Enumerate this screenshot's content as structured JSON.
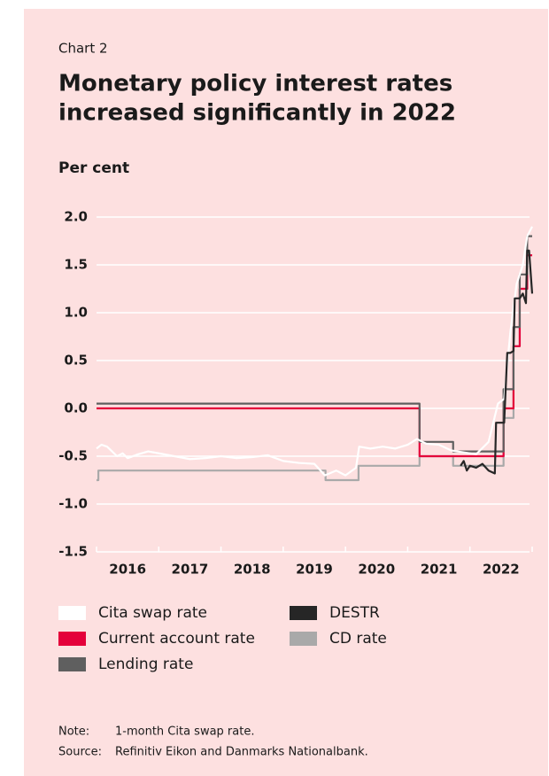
{
  "chart_data": {
    "type": "line",
    "label": "Chart 2",
    "title": [
      "Monetary policy interest rates",
      "increased significantly in 2022"
    ],
    "y_label": "Per cent",
    "xlim": [
      2016,
      2023
    ],
    "xticks": [
      {
        "value": 2016,
        "label": "2016"
      },
      {
        "value": 2017,
        "label": "2017"
      },
      {
        "value": 2018,
        "label": "2018"
      },
      {
        "value": 2019,
        "label": "2019"
      },
      {
        "value": 2020,
        "label": "2020"
      },
      {
        "value": 2021,
        "label": "2021"
      },
      {
        "value": 2022,
        "label": "2022"
      }
    ],
    "ylim": [
      -1.5,
      2.0
    ],
    "yticks": [
      {
        "value": -1.5,
        "label": "-1.5"
      },
      {
        "value": -1.0,
        "label": "-1.0"
      },
      {
        "value": -0.5,
        "label": "-0.5"
      },
      {
        "value": 0,
        "label": "0.0"
      },
      {
        "value": 0.5,
        "label": "0.5"
      },
      {
        "value": 1.0,
        "label": "1.0"
      },
      {
        "value": 1.5,
        "label": "1.5"
      },
      {
        "value": 2.0,
        "label": "2.0"
      }
    ],
    "grid": true,
    "series": [
      {
        "name": "Cita swap rate",
        "color": "#ffffff",
        "step": false,
        "x": [
          2016.0,
          2016.08,
          2016.17,
          2016.25,
          2016.33,
          2016.42,
          2016.5,
          2016.67,
          2016.83,
          2017.0,
          2017.25,
          2017.5,
          2017.75,
          2018.0,
          2018.25,
          2018.5,
          2018.75,
          2019.0,
          2019.25,
          2019.5,
          2019.67,
          2019.85,
          2020.0,
          2020.17,
          2020.22,
          2020.4,
          2020.6,
          2020.8,
          2021.0,
          2021.15,
          2021.3,
          2021.5,
          2021.7,
          2021.9,
          2022.1,
          2022.3,
          2022.45,
          2022.55,
          2022.65,
          2022.75,
          2022.85,
          2022.92,
          2023.0
        ],
        "values": [
          -0.42,
          -0.38,
          -0.4,
          -0.45,
          -0.5,
          -0.47,
          -0.52,
          -0.48,
          -0.45,
          -0.47,
          -0.5,
          -0.53,
          -0.52,
          -0.5,
          -0.52,
          -0.51,
          -0.49,
          -0.55,
          -0.57,
          -0.58,
          -0.7,
          -0.65,
          -0.7,
          -0.62,
          -0.4,
          -0.42,
          -0.4,
          -0.42,
          -0.38,
          -0.32,
          -0.37,
          -0.38,
          -0.44,
          -0.46,
          -0.48,
          -0.35,
          0.05,
          0.1,
          0.8,
          1.3,
          1.5,
          1.8,
          1.9
        ]
      },
      {
        "name": "Current account rate",
        "color": "#e4003a",
        "step": true,
        "x": [
          2016,
          2021.19,
          2022.54,
          2022.7,
          2022.8,
          2022.92,
          2023
        ],
        "values": [
          0,
          -0.5,
          0,
          0.65,
          1.25,
          1.6,
          1.6
        ]
      },
      {
        "name": "Lending rate",
        "color": "#5f5f5f",
        "step": true,
        "x": [
          2016,
          2021.19,
          2021.73,
          2022.54,
          2022.7,
          2022.8,
          2022.92,
          2023
        ],
        "values": [
          0.05,
          -0.35,
          -0.45,
          0.2,
          0.85,
          1.4,
          1.8,
          1.8
        ]
      },
      {
        "name": "DESTR",
        "color": "#262626",
        "step": false,
        "x": [
          2021.85,
          2021.9,
          2021.95,
          2022.0,
          2022.1,
          2022.2,
          2022.3,
          2022.4,
          2022.42,
          2022.5,
          2022.55,
          2022.6,
          2022.65,
          2022.7,
          2022.72,
          2022.8,
          2022.85,
          2022.9,
          2022.92,
          2022.95,
          2023.0
        ],
        "values": [
          -0.6,
          -0.55,
          -0.65,
          -0.6,
          -0.62,
          -0.58,
          -0.65,
          -0.68,
          -0.15,
          -0.15,
          -0.15,
          0.58,
          0.58,
          0.6,
          1.15,
          1.15,
          1.2,
          1.1,
          1.65,
          1.65,
          1.2
        ]
      },
      {
        "name": "CD rate",
        "color": "#a9a9a9",
        "step": true,
        "x": [
          2016,
          2016.03,
          2019.68,
          2020.21,
          2021.19,
          2021.73,
          2022.54,
          2022.7,
          2022.8,
          2022.92,
          2023
        ],
        "values": [
          -0.75,
          -0.65,
          -0.75,
          -0.6,
          -0.5,
          -0.6,
          -0.1,
          0.65,
          1.25,
          1.6,
          1.6
        ]
      }
    ],
    "note": {
      "label": "Note:",
      "text": "1-month Cita swap rate."
    },
    "source": {
      "label": "Source:",
      "text": "Refinitiv Eikon and Danmarks Nationalbank."
    }
  }
}
